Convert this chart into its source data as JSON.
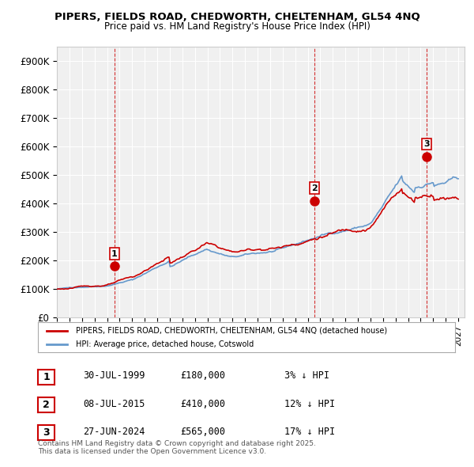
{
  "title1": "PIPERS, FIELDS ROAD, CHEDWORTH, CHELTENHAM, GL54 4NQ",
  "title2": "Price paid vs. HM Land Registry's House Price Index (HPI)",
  "ylabel": "",
  "ylim": [
    0,
    950000
  ],
  "yticks": [
    0,
    100000,
    200000,
    300000,
    400000,
    500000,
    600000,
    700000,
    800000,
    900000
  ],
  "ytick_labels": [
    "£0",
    "£100K",
    "£200K",
    "£300K",
    "£400K",
    "£500K",
    "£600K",
    "£700K",
    "£800K",
    "£900K"
  ],
  "xlim_min": 1995.0,
  "xlim_max": 2027.5,
  "background_color": "#ffffff",
  "plot_bg_color": "#f0f0f0",
  "grid_color": "#ffffff",
  "sale1_date": 1999.58,
  "sale1_price": 180000,
  "sale2_date": 2015.52,
  "sale2_price": 410000,
  "sale3_date": 2024.49,
  "sale3_price": 565000,
  "legend_line1": "PIPERS, FIELDS ROAD, CHEDWORTH, CHELTENHAM, GL54 4NQ (detached house)",
  "legend_line2": "HPI: Average price, detached house, Cotswold",
  "table_row1": [
    "1",
    "30-JUL-1999",
    "£180,000",
    "3% ↓ HPI"
  ],
  "table_row2": [
    "2",
    "08-JUL-2015",
    "£410,000",
    "12% ↓ HPI"
  ],
  "table_row3": [
    "3",
    "27-JUN-2024",
    "£565,000",
    "17% ↓ HPI"
  ],
  "footer": "Contains HM Land Registry data © Crown copyright and database right 2025.\nThis data is licensed under the Open Government Licence v3.0.",
  "hpi_color": "#6699cc",
  "price_color": "#cc0000",
  "sale_marker_color": "#cc0000",
  "vline_color": "#cc0000"
}
